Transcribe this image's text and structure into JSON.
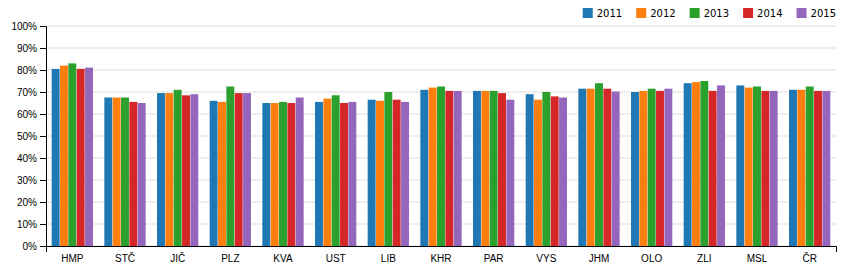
{
  "chart_data": {
    "type": "bar",
    "categories": [
      "HMP",
      "STČ",
      "JIČ",
      "PLZ",
      "KVA",
      "UST",
      "LIB",
      "KHR",
      "PAR",
      "VYS",
      "JHM",
      "OLO",
      "ZLI",
      "MSL",
      "ČR"
    ],
    "series": [
      {
        "name": "2011",
        "values": [
          80.5,
          67.5,
          69.5,
          66.0,
          65.0,
          65.5,
          66.5,
          71.0,
          70.5,
          69.0,
          71.5,
          70.0,
          74.0,
          73.0,
          71.0
        ]
      },
      {
        "name": "2012",
        "values": [
          82.0,
          67.5,
          69.5,
          65.5,
          65.0,
          67.0,
          66.0,
          72.0,
          70.5,
          66.5,
          71.5,
          70.5,
          74.5,
          72.0,
          71.0
        ]
      },
      {
        "name": "2013",
        "values": [
          83.0,
          67.5,
          71.0,
          72.5,
          65.5,
          68.5,
          70.0,
          72.5,
          70.5,
          70.0,
          74.0,
          71.5,
          75.0,
          72.5,
          72.5
        ]
      },
      {
        "name": "2014",
        "values": [
          80.5,
          65.5,
          68.5,
          69.5,
          65.0,
          65.0,
          66.5,
          70.5,
          69.5,
          68.0,
          71.5,
          70.5,
          70.5,
          70.5,
          70.5
        ]
      },
      {
        "name": "2015",
        "values": [
          81.1,
          65.0,
          69.0,
          69.5,
          67.5,
          65.5,
          65.5,
          70.5,
          66.5,
          67.5,
          70.2,
          71.5,
          73.0,
          70.5,
          70.5
        ]
      }
    ],
    "ylim": [
      0,
      100
    ],
    "yticks": [
      {
        "value": 0,
        "label": "0%"
      },
      {
        "value": 10,
        "label": "10%"
      },
      {
        "value": 20,
        "label": "20%"
      },
      {
        "value": 30,
        "label": "30%"
      },
      {
        "value": 40,
        "label": "40%"
      },
      {
        "value": 50,
        "label": "50%"
      },
      {
        "value": 60,
        "label": "60%"
      },
      {
        "value": 70,
        "label": "70%"
      },
      {
        "value": 80,
        "label": "80%"
      },
      {
        "value": 90,
        "label": "90%"
      },
      {
        "value": 100,
        "label": "100%"
      }
    ],
    "grid": true,
    "legend": "upper right"
  }
}
